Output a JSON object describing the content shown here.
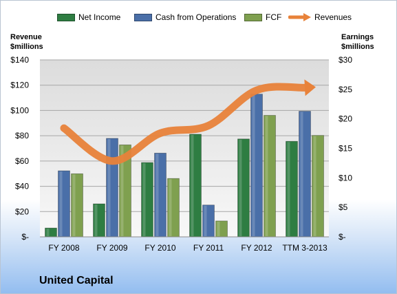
{
  "chart_data": {
    "type": "bar",
    "categories": [
      "FY 2008",
      "FY 2009",
      "FY 2010",
      "FY 2011",
      "FY 2012",
      "TTM 3-2013"
    ],
    "series": [
      {
        "name": "Net Income",
        "axis": "right",
        "color": "#2e7d42",
        "values": [
          1.5,
          5.6,
          12.6,
          17.4,
          16.6,
          16.2
        ]
      },
      {
        "name": "Cash from Operations",
        "axis": "right",
        "color": "#4a6fa8",
        "values": [
          11.2,
          16.7,
          14.2,
          5.4,
          24.2,
          21.3
        ]
      },
      {
        "name": "FCF",
        "axis": "right",
        "color": "#7fa04f",
        "values": [
          10.7,
          15.6,
          9.9,
          2.7,
          20.6,
          17.2
        ]
      },
      {
        "name": "Revenues",
        "type": "line",
        "axis": "left",
        "color": "#e8823a",
        "values": [
          86,
          60,
          82,
          88,
          116,
          118
        ]
      }
    ],
    "y_left": {
      "label_line1": "Revenue",
      "label_line2": "$millions",
      "range": [
        0,
        140
      ],
      "ticks": [
        "$-",
        "$20",
        "$40",
        "$60",
        "$80",
        "$100",
        "$120",
        "$140"
      ]
    },
    "y_right": {
      "label_line1": "Earnings",
      "label_line2": "$millions",
      "range": [
        0,
        30
      ],
      "ticks": [
        "$-",
        "$5",
        "$10",
        "$15",
        "$20",
        "$25",
        "$30"
      ]
    },
    "grid": true,
    "legend_position": "top",
    "title": "United Capital"
  }
}
